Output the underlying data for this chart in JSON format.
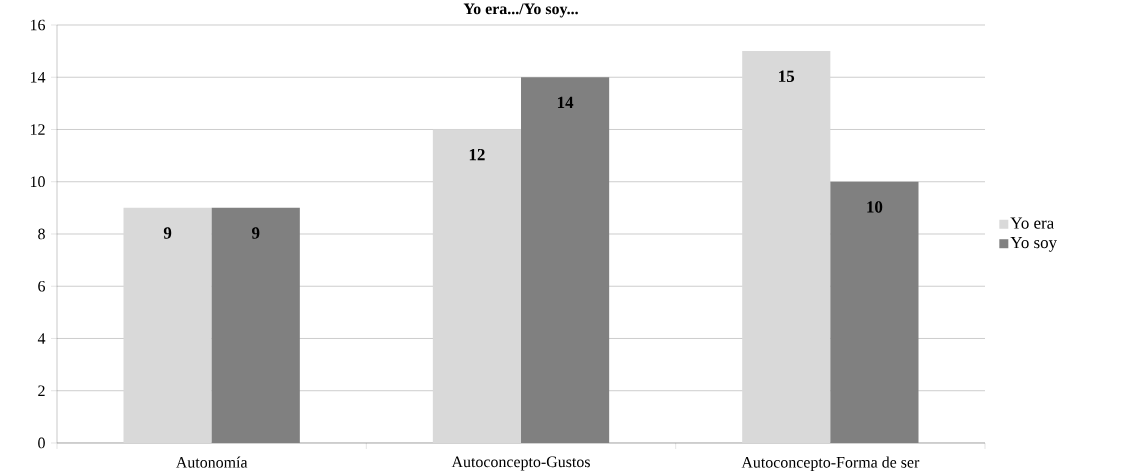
{
  "chart_data": {
    "type": "bar",
    "title": "Yo era.../Yo soy...",
    "categories": [
      "Autonomía",
      "Autoconcepto-Gustos",
      "Autoconcepto-Forma de ser"
    ],
    "series": [
      {
        "name": "Yo era",
        "color": "#d9d9d9",
        "values": [
          9,
          12,
          15
        ]
      },
      {
        "name": "Yo soy",
        "color": "#808080",
        "values": [
          9,
          14,
          10
        ]
      }
    ],
    "ylim": [
      0,
      16
    ],
    "yticks": [
      0,
      2,
      4,
      6,
      8,
      10,
      12,
      14,
      16
    ],
    "grid": "y",
    "legend": "right",
    "data_labels": true
  }
}
